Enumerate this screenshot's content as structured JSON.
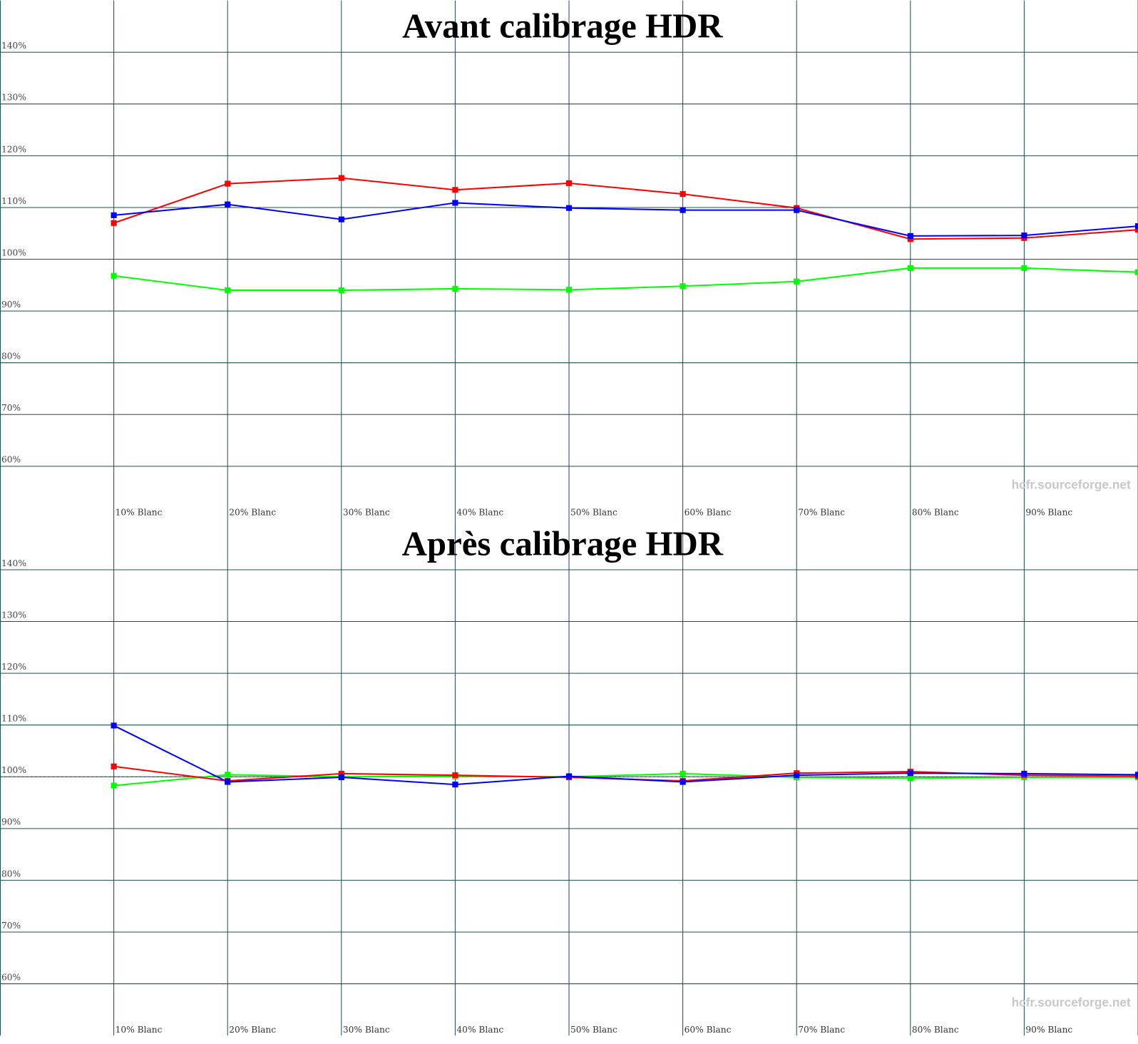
{
  "chart_data": [
    {
      "type": "line",
      "title": "Avant calibrage HDR",
      "watermark": "hcfr.sourceforge.net",
      "categories": [
        "10% Blanc",
        "20% Blanc",
        "30% Blanc",
        "40% Blanc",
        "50% Blanc",
        "60% Blanc",
        "70% Blanc",
        "80% Blanc",
        "90% Blanc",
        null
      ],
      "series": [
        {
          "color": "#00ff00",
          "values": [
            96.8,
            94.0,
            94.0,
            94.3,
            94.1,
            94.8,
            95.7,
            98.3,
            98.3,
            97.5
          ]
        },
        {
          "color": "#ff0000",
          "values": [
            107.0,
            114.6,
            115.7,
            113.4,
            114.7,
            112.6,
            109.9,
            103.9,
            104.1,
            105.7
          ]
        },
        {
          "color": "#0000ff",
          "values": [
            108.5,
            110.6,
            107.7,
            110.9,
            109.9,
            109.5,
            109.5,
            104.5,
            104.6,
            106.4
          ]
        }
      ],
      "ylim": [
        50,
        150
      ],
      "yticks": [
        {
          "value": 60,
          "label": "60%"
        },
        {
          "value": 70,
          "label": "70%"
        },
        {
          "value": 80,
          "label": "80%"
        },
        {
          "value": 90,
          "label": "90%"
        },
        {
          "value": 100,
          "label": "100%"
        },
        {
          "value": 110,
          "label": "110%"
        },
        {
          "value": 120,
          "label": "120%"
        },
        {
          "value": 130,
          "label": "130%"
        },
        {
          "value": 140,
          "label": "140%"
        }
      ],
      "reference_line": 100,
      "grid": true
    },
    {
      "type": "line",
      "title": "Après calibrage HDR",
      "watermark": "hcfr.sourceforge.net",
      "categories": [
        "10% Blanc",
        "20% Blanc",
        "30% Blanc",
        "40% Blanc",
        "50% Blanc",
        "60% Blanc",
        "70% Blanc",
        "80% Blanc",
        "90% Blanc",
        null
      ],
      "series": [
        {
          "color": "#00ff00",
          "values": [
            98.3,
            100.4,
            100.0,
            100.1,
            100.0,
            100.6,
            99.9,
            99.7,
            99.9,
            99.9
          ]
        },
        {
          "color": "#ff0000",
          "values": [
            102.0,
            99.2,
            100.6,
            100.3,
            99.9,
            99.2,
            100.7,
            101.0,
            100.3,
            100.1
          ]
        },
        {
          "color": "#0000ff",
          "values": [
            109.9,
            99.0,
            99.9,
            98.5,
            100.1,
            99.0,
            100.3,
            100.7,
            100.6,
            100.4
          ]
        }
      ],
      "ylim": [
        50,
        150
      ],
      "yticks": [
        {
          "value": 60,
          "label": "60%"
        },
        {
          "value": 70,
          "label": "70%"
        },
        {
          "value": 80,
          "label": "80%"
        },
        {
          "value": 90,
          "label": "90%"
        },
        {
          "value": 100,
          "label": "100%"
        },
        {
          "value": 110,
          "label": "110%"
        },
        {
          "value": 120,
          "label": "120%"
        },
        {
          "value": 130,
          "label": "130%"
        },
        {
          "value": 140,
          "label": "140%"
        }
      ],
      "reference_line": 100,
      "grid": true
    }
  ]
}
